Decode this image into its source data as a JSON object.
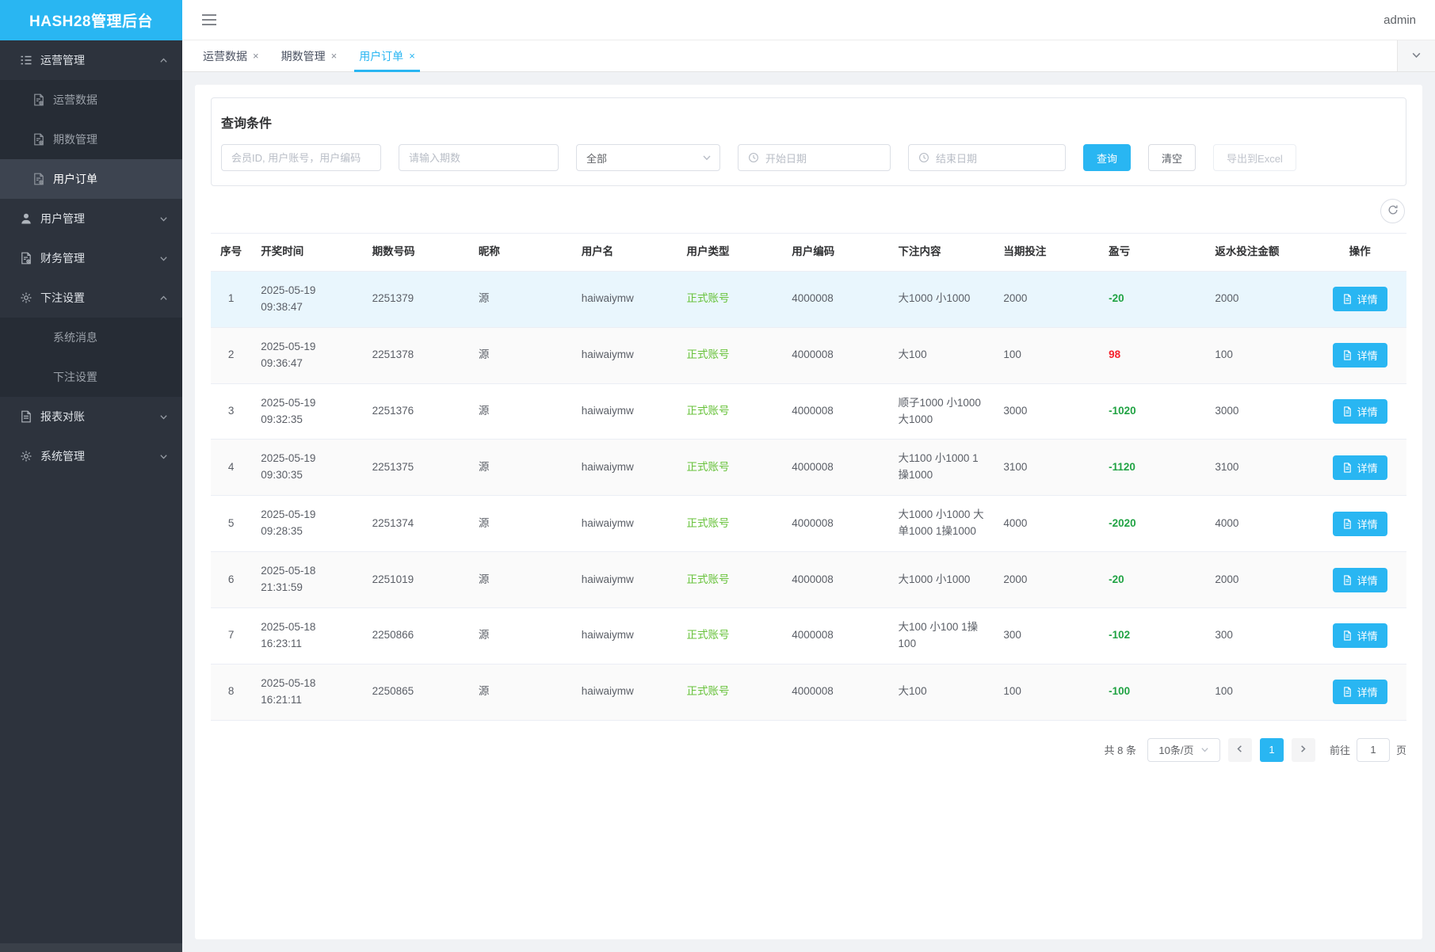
{
  "app": {
    "title": "HASH28管理后台",
    "user": "admin"
  },
  "colors": {
    "accent_blue": "#29b6f2",
    "type_green": "#67c23a",
    "loss_green": "#21a344",
    "gain_red": "#f5222d",
    "row_highlight": "#e9f6fd"
  },
  "sidebar": {
    "items": [
      {
        "key": "operations-management",
        "label": "运营管理",
        "icon": "list-icon",
        "level": "group",
        "chevron": "up",
        "active": false
      },
      {
        "key": "operations-data",
        "label": "运营数据",
        "icon": "doc-gear-icon",
        "level": "sub",
        "active": false
      },
      {
        "key": "periods-management",
        "label": "期数管理",
        "icon": "doc-gear-icon",
        "level": "sub",
        "active": false
      },
      {
        "key": "user-orders",
        "label": "用户订单",
        "icon": "doc-gear-icon",
        "level": "sub",
        "active": true
      },
      {
        "key": "user-management",
        "label": "用户管理",
        "icon": "user-icon",
        "level": "group",
        "chevron": "down",
        "active": false
      },
      {
        "key": "finance-management",
        "label": "财务管理",
        "icon": "doc-gear-icon",
        "level": "group",
        "chevron": "down",
        "active": false
      },
      {
        "key": "bet-settings",
        "label": "下注设置",
        "icon": "gear-icon",
        "level": "group",
        "chevron": "up",
        "active": false
      },
      {
        "key": "system-messages",
        "label": "系统消息",
        "icon": null,
        "level": "sub-plain",
        "active": false
      },
      {
        "key": "bet-settings-sub",
        "label": "下注设置",
        "icon": null,
        "level": "sub-plain",
        "active": false
      },
      {
        "key": "report-reconciliation",
        "label": "报表对账",
        "icon": "doc-icon",
        "level": "group",
        "chevron": "down",
        "active": false
      },
      {
        "key": "system-management",
        "label": "系统管理",
        "icon": "gear-icon",
        "level": "group",
        "chevron": "down",
        "active": false
      }
    ]
  },
  "tabs": [
    {
      "key": "operations-data",
      "label": "运营数据",
      "active": false
    },
    {
      "key": "periods-management",
      "label": "期数管理",
      "active": false
    },
    {
      "key": "user-orders",
      "label": "用户订单",
      "active": true
    }
  ],
  "filter": {
    "title": "查询条件",
    "member_placeholder": "会员ID, 用户账号，用户编码",
    "period_placeholder": "请输入期数",
    "type_value": "全部",
    "start_date_placeholder": "开始日期",
    "end_date_placeholder": "结束日期",
    "search_label": "查询",
    "clear_label": "清空",
    "export_label": "导出到Excel"
  },
  "table": {
    "headers": [
      "序号",
      "开奖时间",
      "期数号码",
      "昵称",
      "用户名",
      "用户类型",
      "用户编码",
      "下注内容",
      "当期投注",
      "盈亏",
      "返水投注金额",
      "操作"
    ],
    "detail_label": "详情",
    "rows": [
      {
        "no": "1",
        "time": "2025-05-19 09:38:47",
        "period": "2251379",
        "nickname": "源",
        "username": "haiwaiymw",
        "user_type": "正式账号",
        "user_code": "4000008",
        "bet_content": "大1000 小1000",
        "bet_amount": "2000",
        "profit": "-20",
        "profit_trend": "loss",
        "rebate": "2000",
        "highlighted": true
      },
      {
        "no": "2",
        "time": "2025-05-19 09:36:47",
        "period": "2251378",
        "nickname": "源",
        "username": "haiwaiymw",
        "user_type": "正式账号",
        "user_code": "4000008",
        "bet_content": "大100",
        "bet_amount": "100",
        "profit": "98",
        "profit_trend": "gain",
        "rebate": "100",
        "highlighted": false
      },
      {
        "no": "3",
        "time": "2025-05-19 09:32:35",
        "period": "2251376",
        "nickname": "源",
        "username": "haiwaiymw",
        "user_type": "正式账号",
        "user_code": "4000008",
        "bet_content": "顺子1000 小1000 大1000",
        "bet_amount": "3000",
        "profit": "-1020",
        "profit_trend": "loss",
        "rebate": "3000",
        "highlighted": false
      },
      {
        "no": "4",
        "time": "2025-05-19 09:30:35",
        "period": "2251375",
        "nickname": "源",
        "username": "haiwaiymw",
        "user_type": "正式账号",
        "user_code": "4000008",
        "bet_content": "大1100 小1000 1操1000",
        "bet_amount": "3100",
        "profit": "-1120",
        "profit_trend": "loss",
        "rebate": "3100",
        "highlighted": false
      },
      {
        "no": "5",
        "time": "2025-05-19 09:28:35",
        "period": "2251374",
        "nickname": "源",
        "username": "haiwaiymw",
        "user_type": "正式账号",
        "user_code": "4000008",
        "bet_content": "大1000 小1000 大单1000 1操1000",
        "bet_amount": "4000",
        "profit": "-2020",
        "profit_trend": "loss",
        "rebate": "4000",
        "highlighted": false
      },
      {
        "no": "6",
        "time": "2025-05-18 21:31:59",
        "period": "2251019",
        "nickname": "源",
        "username": "haiwaiymw",
        "user_type": "正式账号",
        "user_code": "4000008",
        "bet_content": "大1000 小1000",
        "bet_amount": "2000",
        "profit": "-20",
        "profit_trend": "loss",
        "rebate": "2000",
        "highlighted": false
      },
      {
        "no": "7",
        "time": "2025-05-18 16:23:11",
        "period": "2250866",
        "nickname": "源",
        "username": "haiwaiymw",
        "user_type": "正式账号",
        "user_code": "4000008",
        "bet_content": "大100 小100 1操100",
        "bet_amount": "300",
        "profit": "-102",
        "profit_trend": "loss",
        "rebate": "300",
        "highlighted": false
      },
      {
        "no": "8",
        "time": "2025-05-18 16:21:11",
        "period": "2250865",
        "nickname": "源",
        "username": "haiwaiymw",
        "user_type": "正式账号",
        "user_code": "4000008",
        "bet_content": "大100",
        "bet_amount": "100",
        "profit": "-100",
        "profit_trend": "loss",
        "rebate": "100",
        "highlighted": false
      }
    ]
  },
  "pagination": {
    "total": "共 8 条",
    "page_size": "10条/页",
    "current_page": "1",
    "goto_prefix": "前往",
    "goto_value": "1",
    "goto_suffix": "页"
  }
}
